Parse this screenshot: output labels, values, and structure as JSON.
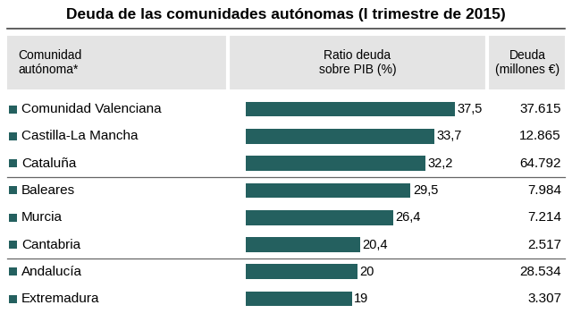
{
  "chart_data": {
    "type": "bar",
    "orientation": "horizontal",
    "title": "Deuda de las comunidades autónomas (I trimestre de 2015)",
    "column_headers": [
      "Comunidad\nautónoma*",
      "Ratio deuda\nsobre PIB (%)",
      "Deuda\n(millones €)"
    ],
    "categories": [
      "Comunidad Valenciana",
      "Castilla-La Mancha",
      "Cataluña",
      "Baleares",
      "Murcia",
      "Cantabria",
      "Andalucía",
      "Extremadura"
    ],
    "values": [
      37.5,
      33.7,
      32.2,
      29.5,
      26.4,
      20.4,
      20,
      19
    ],
    "value_labels": [
      "37,5",
      "33,7",
      "32,2",
      "29,5",
      "26,4",
      "20,4",
      "20",
      "19"
    ],
    "data_labels": true,
    "debt": [
      37615,
      12865,
      64792,
      7984,
      7214,
      2517,
      28534,
      3307
    ],
    "debt_labels": [
      "37.615",
      "12.865",
      "64.792",
      "7.984",
      "7.214",
      "2.517",
      "28.534",
      "3.307"
    ],
    "xlim": [
      0,
      40
    ],
    "tick_labels": false,
    "color": "#24605f"
  }
}
